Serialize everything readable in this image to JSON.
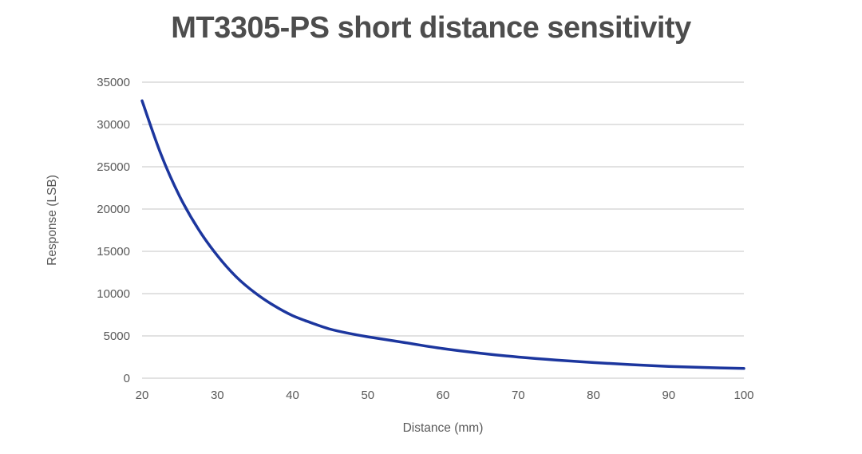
{
  "page": {
    "background": "#ffffff"
  },
  "chart_data": {
    "type": "line",
    "title": "MT3305-PS short distance sensitivity",
    "xlabel": "Distance (mm)",
    "ylabel": "Response (LSB)",
    "xlim": [
      20,
      100
    ],
    "ylim": [
      0,
      35000
    ],
    "x_ticks": [
      20,
      30,
      40,
      50,
      60,
      70,
      80,
      90,
      100
    ],
    "y_ticks": [
      0,
      5000,
      10000,
      15000,
      20000,
      25000,
      30000,
      35000
    ],
    "grid": "horizontal",
    "legend": "none",
    "series": [
      {
        "name": "Response",
        "color": "#1c369e",
        "x": [
          20,
          22.5,
          25,
          27.5,
          30,
          32.5,
          35,
          37.5,
          40,
          42.5,
          45,
          47.5,
          50,
          55,
          60,
          65,
          70,
          75,
          80,
          85,
          90,
          95,
          100
        ],
        "y": [
          32800,
          26500,
          21500,
          17600,
          14500,
          12000,
          10100,
          8600,
          7400,
          6550,
          5800,
          5300,
          4900,
          4200,
          3500,
          2950,
          2500,
          2150,
          1850,
          1600,
          1400,
          1260,
          1150
        ]
      }
    ],
    "colors": {
      "line": "#1c369e",
      "gridline": "#d9d9d9",
      "tick_text": "#595959",
      "title_text": "#4d4d4d",
      "axis_label_text": "#595959",
      "background": "#ffffff"
    }
  }
}
